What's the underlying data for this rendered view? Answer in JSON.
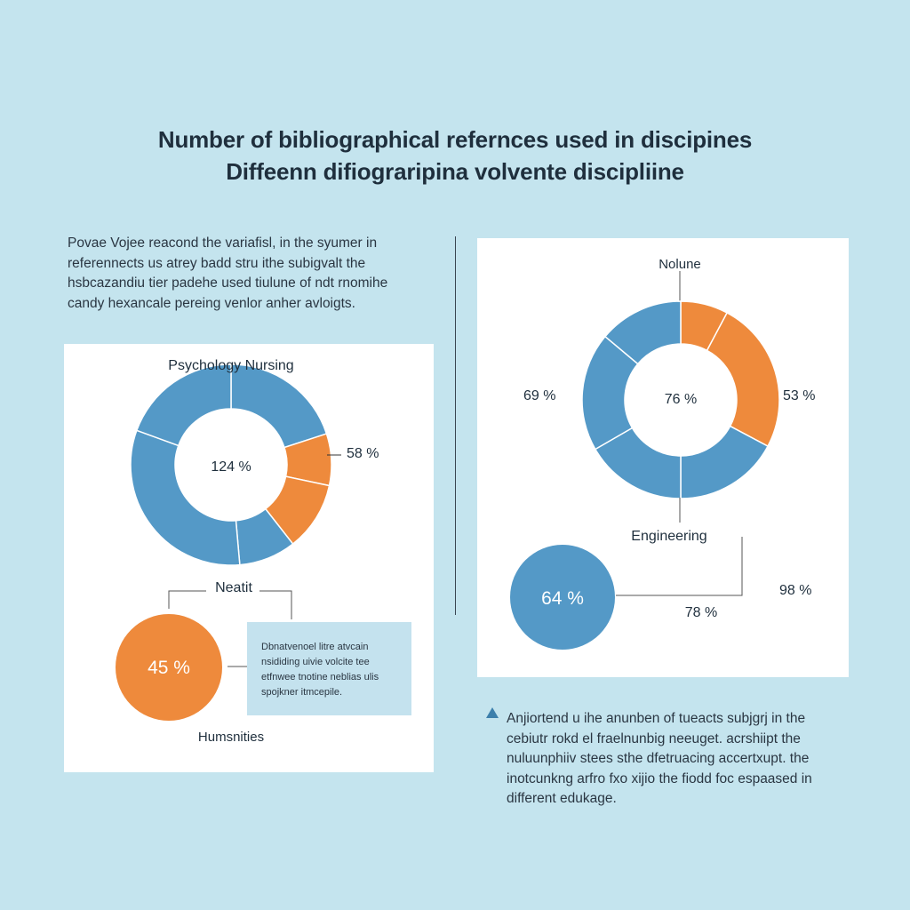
{
  "titles": {
    "line1": "Number of bibliographical refernces used in discipines",
    "line2": "Diffeenn difiograripina volvente discipliine"
  },
  "intro": [
    "Povae Vojee reacond the variafisl, in the syumer in",
    "referennects us atrey badd stru ithe subigvalt the",
    "hsbcazandiu tier padehe used tiulune of ndt rnomihe",
    "candy hexancale pereing venlor anher avloigts."
  ],
  "note": [
    "Anjiortend u ihe anunben of tueacts subjgrj in the",
    "cebiutr rokd el fraelnunbig neeuget. acrshiipt the",
    "nuluunphiiv stees sthe dfetruacing accertxupt. the",
    "inotcunkng arfro fxo xijio the fiodd foc espaased in",
    "different edukage."
  ],
  "infobox": [
    "Dbnatvenoel litre atvcain",
    "nsididing uivie volcite tee",
    "etfnwee tnotine neblias ulis",
    "spojkner itmcepile."
  ],
  "colors": {
    "blue": "#5499c7",
    "orange": "#ee8a3c",
    "background": "#c4e4ee"
  },
  "chart_data": [
    {
      "type": "pie",
      "variant": "donut",
      "label": "Psychology Nursing",
      "center_label": "124 %",
      "segments": [
        {
          "color": "blue",
          "start_deg": 0,
          "end_deg": 72
        },
        {
          "color": "orange",
          "start_deg": 72,
          "end_deg": 102
        },
        {
          "color": "orange",
          "start_deg": 102,
          "end_deg": 142
        },
        {
          "color": "blue",
          "start_deg": 142,
          "end_deg": 175
        },
        {
          "color": "blue",
          "start_deg": 175,
          "end_deg": 290
        },
        {
          "color": "blue",
          "start_deg": 290,
          "end_deg": 360
        }
      ],
      "annotations": [
        "58 %",
        "Neatit"
      ]
    },
    {
      "type": "pie",
      "variant": "circle",
      "label": "Humsnities",
      "center_label": "45 %",
      "color": "orange"
    },
    {
      "type": "pie",
      "variant": "donut",
      "label": "Nolune",
      "center_label": "76 %",
      "segments": [
        {
          "color": "orange",
          "start_deg": 0,
          "end_deg": 28
        },
        {
          "color": "orange",
          "start_deg": 28,
          "end_deg": 118
        },
        {
          "color": "blue",
          "start_deg": 118,
          "end_deg": 180
        },
        {
          "color": "blue",
          "start_deg": 180,
          "end_deg": 240
        },
        {
          "color": "blue",
          "start_deg": 240,
          "end_deg": 310
        },
        {
          "color": "blue",
          "start_deg": 310,
          "end_deg": 360
        }
      ],
      "annotations": [
        "69 %",
        "53 %",
        "Engineering"
      ]
    },
    {
      "type": "pie",
      "variant": "circle",
      "center_label": "64 %",
      "color": "blue",
      "annotations": [
        "98 %",
        "78 %"
      ]
    }
  ]
}
